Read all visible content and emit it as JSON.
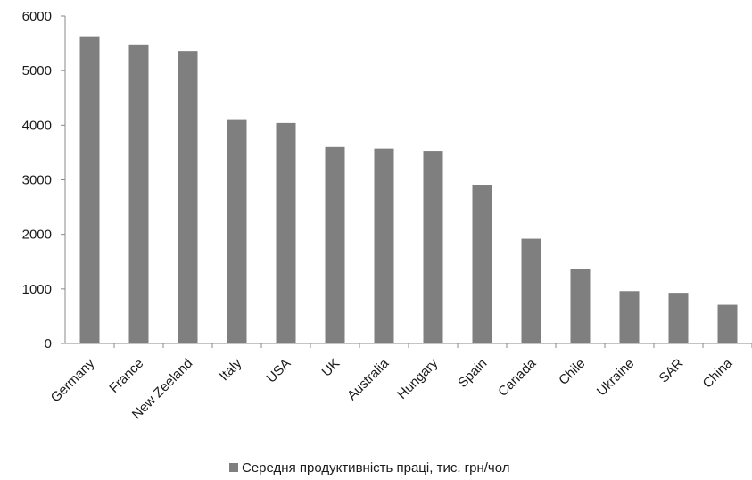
{
  "chart_data": {
    "type": "bar",
    "categories": [
      "Germany",
      "France",
      "New Zeeland",
      "Italy",
      "USA",
      "UK",
      "Australia",
      "Hungary",
      "Spain",
      "Canada",
      "Chile",
      "Ukraine",
      "SAR",
      "China"
    ],
    "series": [
      {
        "name": "Середня продуктивність праці, тис. грн/чол",
        "values": [
          5630,
          5480,
          5360,
          4110,
          4040,
          3600,
          3570,
          3530,
          2910,
          1920,
          1360,
          960,
          930,
          710
        ]
      }
    ],
    "yticks": [
      "0",
      "1000",
      "2000",
      "3000",
      "4000",
      "5000",
      "6000"
    ],
    "ylim": [
      0,
      6000
    ],
    "grid": false,
    "legend_position": "bottom",
    "colors": {
      "bar": "#7f7f7f",
      "axis": "#888888"
    }
  }
}
